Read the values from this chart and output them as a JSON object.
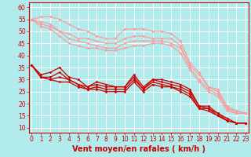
{
  "background_color": "#b2ebeb",
  "grid_color": "#ffffff",
  "xlabel": "Vent moyen/en rafales ( km/h )",
  "xlabel_color": "#cc0000",
  "xlabel_fontsize": 7,
  "tick_color": "#cc0000",
  "tick_fontsize": 5.5,
  "xlim": [
    -0.3,
    23.3
  ],
  "ylim": [
    8,
    62
  ],
  "yticks": [
    10,
    15,
    20,
    25,
    30,
    35,
    40,
    45,
    50,
    55,
    60
  ],
  "xticks": [
    0,
    1,
    2,
    3,
    4,
    5,
    6,
    7,
    8,
    9,
    10,
    11,
    12,
    13,
    14,
    15,
    16,
    17,
    18,
    19,
    20,
    21,
    22,
    23
  ],
  "series": [
    {
      "color": "#ff9999",
      "marker": "D",
      "markersize": 1.5,
      "linewidth": 0.8,
      "data_x": [
        0,
        1,
        2,
        3,
        4,
        5,
        6,
        7,
        8,
        9,
        10,
        11,
        12,
        13,
        14,
        15,
        16,
        17,
        18,
        19,
        20,
        21,
        22,
        23
      ],
      "data_y": [
        55,
        56,
        56,
        55,
        53,
        51,
        50,
        48,
        47,
        47,
        51,
        51,
        51,
        50,
        50,
        49,
        46,
        37,
        33,
        27,
        26,
        19,
        17,
        16
      ]
    },
    {
      "color": "#ff9999",
      "marker": "D",
      "markersize": 1.5,
      "linewidth": 0.8,
      "data_x": [
        0,
        1,
        2,
        3,
        4,
        5,
        6,
        7,
        8,
        9,
        10,
        11,
        12,
        13,
        14,
        15,
        16,
        17,
        18,
        19,
        20,
        21,
        22,
        23
      ],
      "data_y": [
        55,
        54,
        53,
        50,
        49,
        47,
        47,
        46,
        45,
        45,
        47,
        48,
        48,
        47,
        47,
        47,
        44,
        36,
        32,
        27,
        25,
        18,
        17,
        16
      ]
    },
    {
      "color": "#ff9999",
      "marker": "D",
      "markersize": 1.5,
      "linewidth": 0.8,
      "data_x": [
        0,
        1,
        2,
        3,
        4,
        5,
        6,
        7,
        8,
        9,
        10,
        11,
        12,
        13,
        14,
        15,
        16,
        17,
        18,
        19,
        20,
        21,
        22,
        23
      ],
      "data_y": [
        55,
        53,
        52,
        50,
        47,
        46,
        45,
        44,
        43,
        43,
        45,
        46,
        46,
        46,
        46,
        45,
        43,
        35,
        30,
        26,
        24,
        18,
        16,
        16
      ]
    },
    {
      "color": "#ff9999",
      "marker": "D",
      "markersize": 1.5,
      "linewidth": 0.8,
      "data_x": [
        0,
        1,
        2,
        3,
        4,
        5,
        6,
        7,
        8,
        9,
        10,
        11,
        12,
        13,
        14,
        15,
        16,
        17,
        18,
        19,
        20,
        21,
        22,
        23
      ],
      "data_y": [
        55,
        52,
        51,
        48,
        45,
        44,
        43,
        43,
        42,
        42,
        43,
        44,
        44,
        45,
        45,
        44,
        41,
        34,
        29,
        25,
        23,
        17,
        16,
        16
      ]
    },
    {
      "color": "#cc0000",
      "marker": "D",
      "markersize": 1.5,
      "linewidth": 0.9,
      "data_x": [
        0,
        1,
        2,
        3,
        4,
        5,
        6,
        7,
        8,
        9,
        10,
        11,
        12,
        13,
        14,
        15,
        16,
        17,
        18,
        19,
        20,
        21,
        22,
        23
      ],
      "data_y": [
        36,
        32,
        33,
        35,
        31,
        30,
        27,
        29,
        28,
        27,
        27,
        32,
        27,
        30,
        30,
        29,
        28,
        26,
        19,
        19,
        16,
        14,
        12,
        12
      ]
    },
    {
      "color": "#cc0000",
      "marker": "D",
      "markersize": 1.5,
      "linewidth": 0.9,
      "data_x": [
        0,
        1,
        2,
        3,
        4,
        5,
        6,
        7,
        8,
        9,
        10,
        11,
        12,
        13,
        14,
        15,
        16,
        17,
        18,
        19,
        20,
        21,
        22,
        23
      ],
      "data_y": [
        36,
        31,
        31,
        33,
        30,
        28,
        27,
        28,
        27,
        27,
        27,
        31,
        26,
        30,
        29,
        28,
        27,
        25,
        19,
        18,
        16,
        13,
        12,
        12
      ]
    },
    {
      "color": "#cc0000",
      "marker": "D",
      "markersize": 1.5,
      "linewidth": 0.9,
      "data_x": [
        0,
        1,
        2,
        3,
        4,
        5,
        6,
        7,
        8,
        9,
        10,
        11,
        12,
        13,
        14,
        15,
        16,
        17,
        18,
        19,
        20,
        21,
        22,
        23
      ],
      "data_y": [
        36,
        31,
        30,
        31,
        30,
        28,
        26,
        27,
        26,
        26,
        26,
        30,
        26,
        29,
        28,
        27,
        26,
        24,
        18,
        18,
        15,
        13,
        12,
        12
      ]
    },
    {
      "color": "#cc0000",
      "marker": "D",
      "markersize": 1.5,
      "linewidth": 0.9,
      "data_x": [
        0,
        1,
        2,
        3,
        4,
        5,
        6,
        7,
        8,
        9,
        10,
        11,
        12,
        13,
        14,
        15,
        16,
        17,
        18,
        19,
        20,
        21,
        22,
        23
      ],
      "data_y": [
        36,
        31,
        30,
        29,
        29,
        27,
        26,
        26,
        25,
        25,
        25,
        29,
        25,
        28,
        27,
        27,
        25,
        23,
        18,
        17,
        15,
        13,
        12,
        12
      ]
    }
  ]
}
